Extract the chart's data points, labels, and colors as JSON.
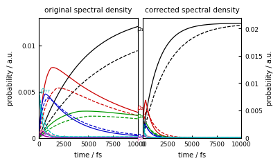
{
  "title_left": "original spectral density",
  "title_right": "corrected spectral density",
  "xlabel": "time / fs",
  "ylabel_left": "probability / a.u.",
  "ylabel_right": "probability / a.u.",
  "ylim_left": [
    0,
    0.013
  ],
  "ylim_right": [
    0,
    0.022
  ],
  "yticks_left": [
    0,
    0.005,
    0.01
  ],
  "yticks_right": [
    0,
    0.005,
    0.01,
    0.015,
    0.02
  ],
  "xticks": [
    0,
    2500,
    5000,
    7500,
    10000
  ],
  "colors": {
    "rho11": "#000000",
    "rho22": "#cc0000",
    "rho33": "#009900",
    "rho44": "#0000cc",
    "rho55": "#ff88bb",
    "rho66": "#9900aa",
    "rho77": "#00bbbb"
  },
  "labels": {
    "rho11": "ρ₁₁",
    "rho22": "ρ₂₂",
    "rho33": "ρ₃₃",
    "rho44": "ρ₄₄",
    "rho55": "ρ₅₅",
    "rho66": "ρ₆₆",
    "rho77": "ρ₇₇"
  },
  "background": "#ffffff",
  "title_fontsize": 7.5,
  "label_fontsize": 7,
  "tick_fontsize": 6.5,
  "ann_fontsize": 7
}
